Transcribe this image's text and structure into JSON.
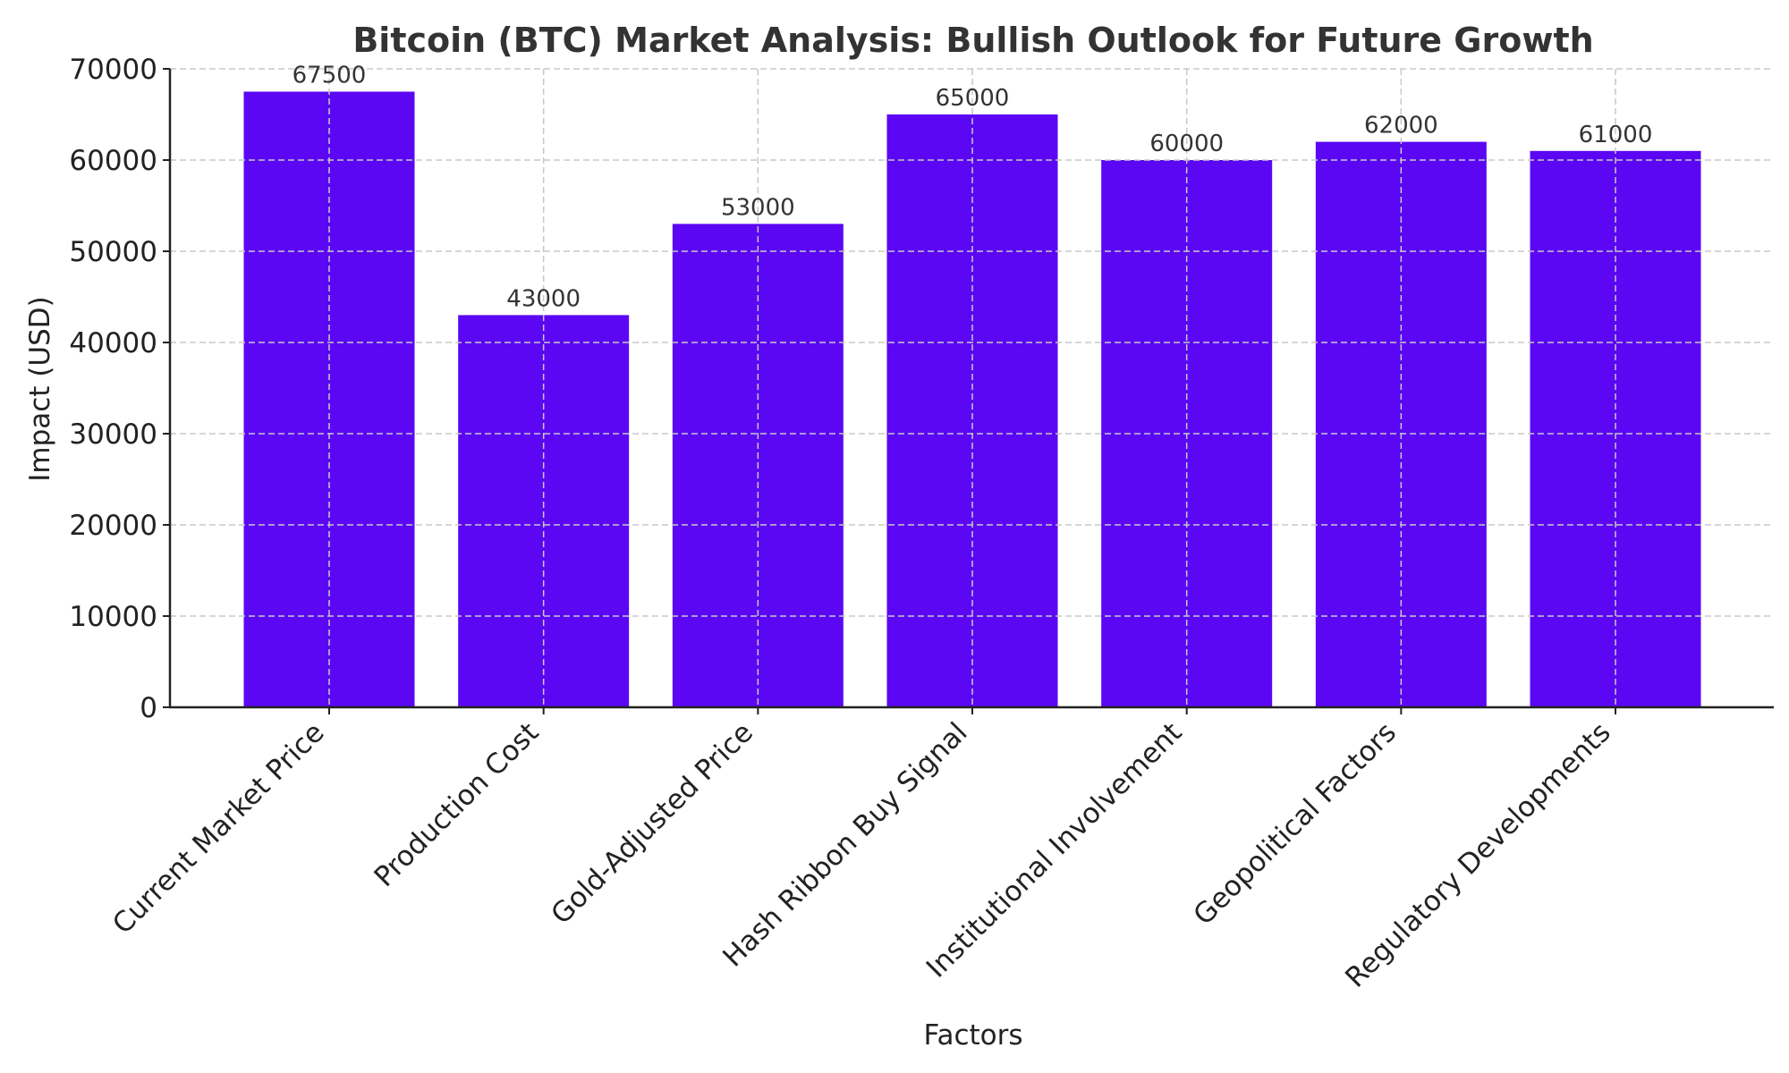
{
  "chart_data": {
    "type": "bar",
    "title": "Bitcoin (BTC) Market Analysis: Bullish Outlook for Future Growth",
    "xlabel": "Factors",
    "ylabel": "Impact (USD)",
    "categories": [
      "Current Market Price",
      "Production Cost",
      "Gold-Adjusted Price",
      "Hash Ribbon Buy Signal",
      "Institutional Involvement",
      "Geopolitical Factors",
      "Regulatory Developments"
    ],
    "values": [
      67500,
      43000,
      53000,
      65000,
      60000,
      62000,
      61000
    ],
    "data_labels": [
      "67500",
      "43000",
      "53000",
      "65000",
      "60000",
      "62000",
      "61000"
    ],
    "ylim": [
      0,
      70000
    ],
    "yticks": [
      0,
      10000,
      20000,
      30000,
      40000,
      50000,
      60000,
      70000
    ],
    "ytick_labels": [
      "0",
      "10000",
      "20000",
      "30000",
      "40000",
      "50000",
      "60000",
      "70000"
    ],
    "grid": true,
    "bar_color": "#5b07f4"
  }
}
